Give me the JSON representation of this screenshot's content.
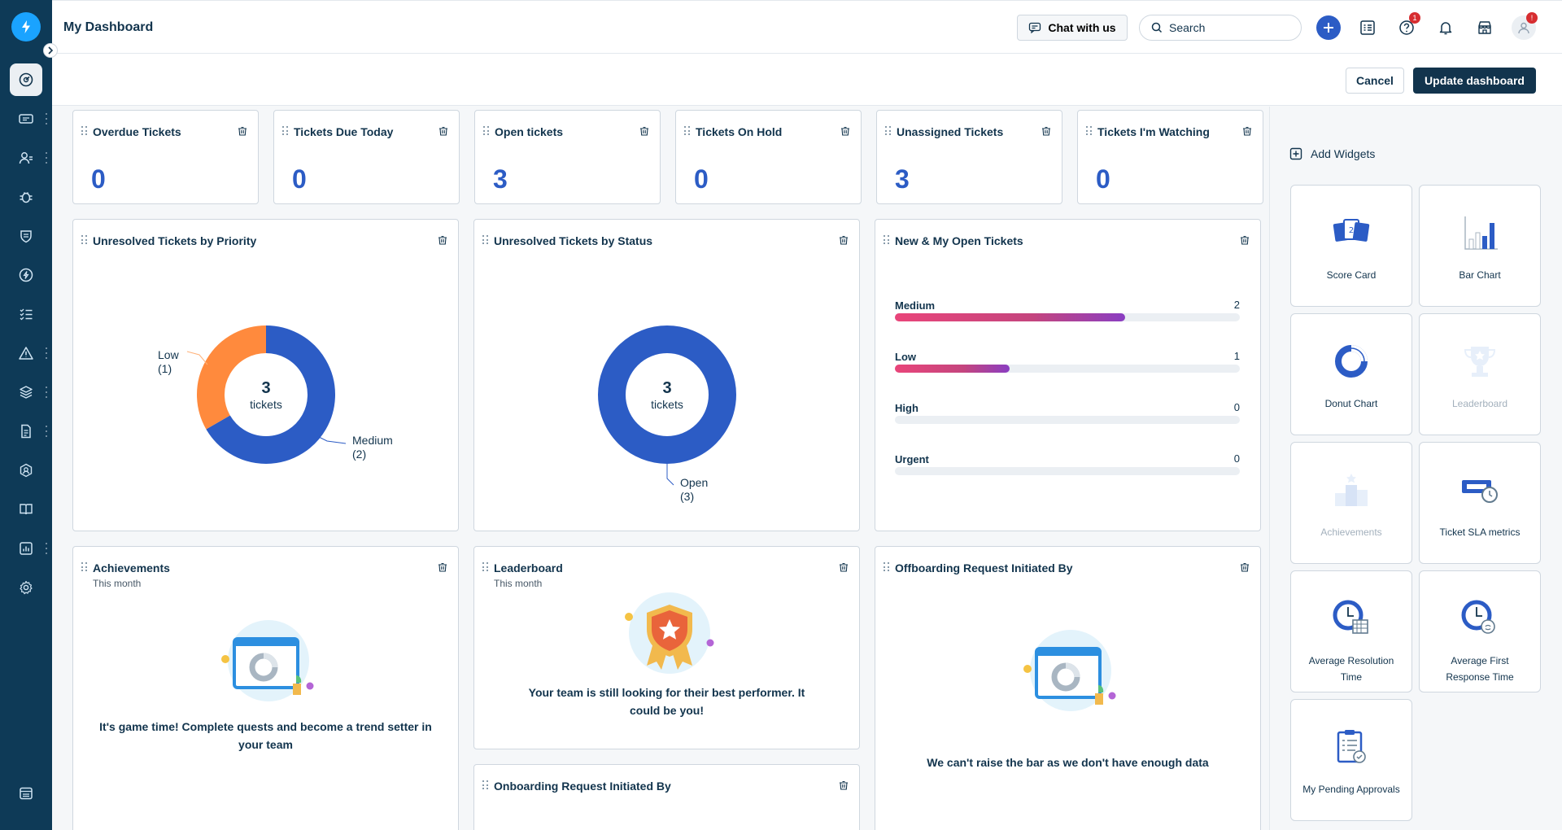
{
  "header": {
    "title": "My Dashboard",
    "chat_label": "Chat with us",
    "search_placeholder": "Search",
    "help_badge": "1",
    "profile_badge": "!"
  },
  "toolbar": {
    "cancel_label": "Cancel",
    "update_label": "Update dashboard"
  },
  "score_cards": [
    {
      "title": "Overdue Tickets",
      "value": "0"
    },
    {
      "title": "Tickets Due Today",
      "value": "0"
    },
    {
      "title": "Open tickets",
      "value": "3"
    },
    {
      "title": "Tickets On Hold",
      "value": "0"
    },
    {
      "title": "Unassigned Tickets",
      "value": "3"
    },
    {
      "title": "Tickets I'm Watching",
      "value": "0"
    }
  ],
  "priority_chart": {
    "title": "Unresolved Tickets by Priority",
    "center_value": "3",
    "center_label": "tickets",
    "slices": [
      {
        "name": "Medium",
        "count": "(2)",
        "value": 2,
        "color": "#2c5cc5"
      },
      {
        "name": "Low",
        "count": "(1)",
        "value": 1,
        "color": "#ff8a3d"
      }
    ]
  },
  "status_chart": {
    "title": "Unresolved Tickets by Status",
    "center_value": "3",
    "center_label": "tickets",
    "slices": [
      {
        "name": "Open",
        "count": "(3)",
        "value": 3,
        "color": "#2c5cc5"
      }
    ]
  },
  "open_tickets": {
    "title": "New & My Open Tickets",
    "rows": [
      {
        "label": "Medium",
        "count": "2",
        "fraction": 0.667
      },
      {
        "label": "Low",
        "count": "1",
        "fraction": 0.333
      },
      {
        "label": "High",
        "count": "0",
        "fraction": 0
      },
      {
        "label": "Urgent",
        "count": "0",
        "fraction": 0
      }
    ]
  },
  "achievements": {
    "title": "Achievements",
    "subtitle": "This month",
    "message": "It's game time! Complete quests and become a trend setter in your team"
  },
  "leaderboard": {
    "title": "Leaderboard",
    "subtitle": "This month",
    "message": "Your team is still looking for their best performer. It could be you!"
  },
  "offboarding": {
    "title": "Offboarding Request Initiated By",
    "message": "We can't raise the bar as we don't have enough data"
  },
  "onboarding": {
    "title": "Onboarding Request Initiated By"
  },
  "widgets_panel": {
    "title": "Add Widgets",
    "items": [
      {
        "label": "Score Card",
        "enabled": true
      },
      {
        "label": "Bar Chart",
        "enabled": true
      },
      {
        "label": "Donut Chart",
        "enabled": true
      },
      {
        "label": "Leaderboard",
        "enabled": false
      },
      {
        "label": "Achievements",
        "enabled": false
      },
      {
        "label": "Ticket SLA metrics",
        "enabled": true
      },
      {
        "label": "Average Resolution Time",
        "enabled": true
      },
      {
        "label": "Average First Response Time",
        "enabled": true
      },
      {
        "label": "My Pending Approvals",
        "enabled": true
      }
    ]
  }
}
